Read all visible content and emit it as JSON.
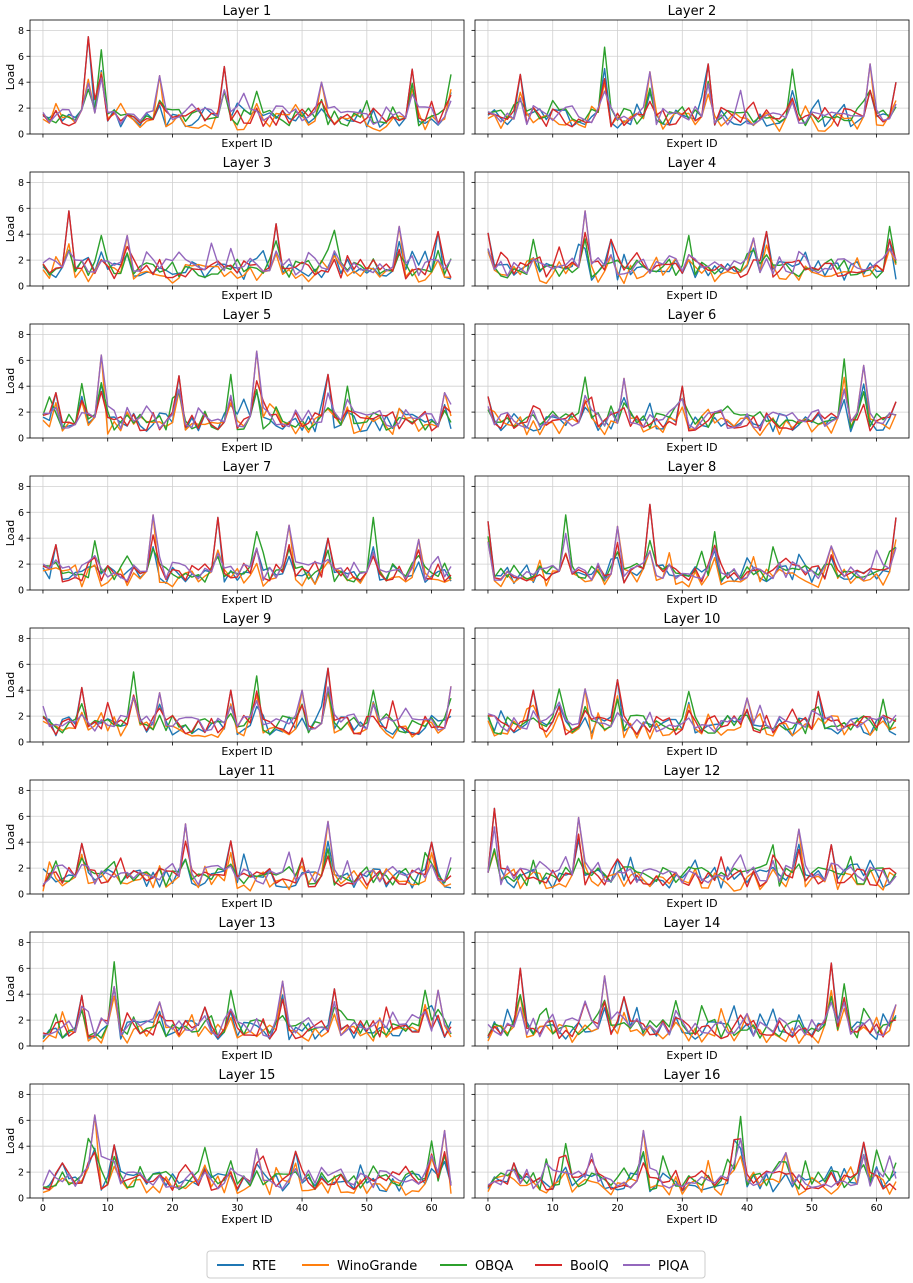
{
  "figure": {
    "legend": {
      "placement": "bottom-center",
      "entries": [
        {
          "name": "RTE",
          "color": "#1f77b4"
        },
        {
          "name": "WinoGrande",
          "color": "#ff7f0e"
        },
        {
          "name": "OBQA",
          "color": "#2ca02c"
        },
        {
          "name": "BoolQ",
          "color": "#d62728"
        },
        {
          "name": "PIQA",
          "color": "#9467bd"
        }
      ]
    }
  },
  "chart_data": [
    {
      "type": "line",
      "title": "Layer 1",
      "xlabel": "Expert ID",
      "ylabel": "Load",
      "xlim": [
        -2,
        65
      ],
      "ylim": [
        0,
        8.8
      ],
      "x_ticks": [
        0,
        10,
        20,
        30,
        40,
        50,
        60
      ],
      "y_ticks": [
        0,
        2,
        4,
        6,
        8
      ],
      "grid": true,
      "series_names": [
        "RTE",
        "WinoGrande",
        "OBQA",
        "BoolQ",
        "PIQA"
      ],
      "peaks": [
        [
          7,
          7.5
        ],
        [
          9,
          6.5
        ],
        [
          18,
          4.5
        ],
        [
          28,
          5.2
        ],
        [
          33,
          3.3
        ],
        [
          43,
          4.0
        ],
        [
          57,
          5.0
        ],
        [
          63,
          4.6
        ]
      ]
    },
    {
      "type": "line",
      "title": "Layer 2",
      "xlabel": "Expert ID",
      "ylabel": "",
      "xlim": [
        -2,
        65
      ],
      "ylim": [
        0,
        8.8
      ],
      "x_ticks": [
        0,
        10,
        20,
        30,
        40,
        50,
        60
      ],
      "y_ticks": [
        0,
        2,
        4,
        6,
        8
      ],
      "grid": true,
      "series_names": [
        "RTE",
        "WinoGrande",
        "OBQA",
        "BoolQ",
        "PIQA"
      ],
      "peaks": [
        [
          5,
          4.6
        ],
        [
          18,
          6.7
        ],
        [
          25,
          4.8
        ],
        [
          34,
          5.4
        ],
        [
          47,
          5.0
        ],
        [
          59,
          5.4
        ],
        [
          63,
          4.0
        ]
      ]
    },
    {
      "type": "line",
      "title": "Layer 3",
      "xlabel": "Expert ID",
      "ylabel": "Load",
      "xlim": [
        -2,
        65
      ],
      "ylim": [
        0,
        8.8
      ],
      "x_ticks": [
        0,
        10,
        20,
        30,
        40,
        50,
        60
      ],
      "y_ticks": [
        0,
        2,
        4,
        6,
        8
      ],
      "grid": true,
      "series_names": [
        "RTE",
        "WinoGrande",
        "OBQA",
        "BoolQ",
        "PIQA"
      ],
      "peaks": [
        [
          4,
          5.8
        ],
        [
          9,
          3.9
        ],
        [
          13,
          3.9
        ],
        [
          36,
          4.8
        ],
        [
          45,
          4.3
        ],
        [
          55,
          4.6
        ],
        [
          61,
          4.2
        ]
      ]
    },
    {
      "type": "line",
      "title": "Layer 4",
      "xlabel": "Expert ID",
      "ylabel": "",
      "xlim": [
        -2,
        65
      ],
      "ylim": [
        0,
        8.8
      ],
      "x_ticks": [
        0,
        10,
        20,
        30,
        40,
        50,
        60
      ],
      "y_ticks": [
        0,
        2,
        4,
        6,
        8
      ],
      "grid": true,
      "series_names": [
        "RTE",
        "WinoGrande",
        "OBQA",
        "BoolQ",
        "PIQA"
      ],
      "peaks": [
        [
          0,
          4.1
        ],
        [
          7,
          3.6
        ],
        [
          15,
          5.8
        ],
        [
          19,
          3.6
        ],
        [
          31,
          3.9
        ],
        [
          41,
          3.7
        ],
        [
          43,
          4.2
        ],
        [
          62,
          4.6
        ]
      ]
    },
    {
      "type": "line",
      "title": "Layer 5",
      "xlabel": "Expert ID",
      "ylabel": "Load",
      "xlim": [
        -2,
        65
      ],
      "ylim": [
        0,
        8.8
      ],
      "x_ticks": [
        0,
        10,
        20,
        30,
        40,
        50,
        60
      ],
      "y_ticks": [
        0,
        2,
        4,
        6,
        8
      ],
      "grid": true,
      "series_names": [
        "RTE",
        "WinoGrande",
        "OBQA",
        "BoolQ",
        "PIQA"
      ],
      "peaks": [
        [
          2,
          3.5
        ],
        [
          6,
          4.2
        ],
        [
          9,
          6.4
        ],
        [
          21,
          4.8
        ],
        [
          29,
          4.9
        ],
        [
          33,
          6.7
        ],
        [
          44,
          4.9
        ],
        [
          47,
          4.0
        ],
        [
          62,
          3.5
        ]
      ]
    },
    {
      "type": "line",
      "title": "Layer 6",
      "xlabel": "Expert ID",
      "ylabel": "",
      "xlim": [
        -2,
        65
      ],
      "ylim": [
        0,
        8.8
      ],
      "x_ticks": [
        0,
        10,
        20,
        30,
        40,
        50,
        60
      ],
      "y_ticks": [
        0,
        2,
        4,
        6,
        8
      ],
      "grid": true,
      "series_names": [
        "RTE",
        "WinoGrande",
        "OBQA",
        "BoolQ",
        "PIQA"
      ],
      "peaks": [
        [
          0,
          3.2
        ],
        [
          15,
          4.7
        ],
        [
          21,
          4.6
        ],
        [
          30,
          4.0
        ],
        [
          55,
          6.1
        ],
        [
          58,
          5.6
        ],
        [
          63,
          2.8
        ]
      ]
    },
    {
      "type": "line",
      "title": "Layer 7",
      "xlabel": "Expert ID",
      "ylabel": "Load",
      "xlim": [
        -2,
        65
      ],
      "ylim": [
        0,
        8.8
      ],
      "x_ticks": [
        0,
        10,
        20,
        30,
        40,
        50,
        60
      ],
      "y_ticks": [
        0,
        2,
        4,
        6,
        8
      ],
      "grid": true,
      "series_names": [
        "RTE",
        "WinoGrande",
        "OBQA",
        "BoolQ",
        "PIQA"
      ],
      "peaks": [
        [
          2,
          3.5
        ],
        [
          8,
          3.8
        ],
        [
          17,
          5.8
        ],
        [
          27,
          5.6
        ],
        [
          33,
          4.5
        ],
        [
          38,
          5.0
        ],
        [
          44,
          4.0
        ],
        [
          51,
          5.6
        ],
        [
          58,
          3.9
        ]
      ]
    },
    {
      "type": "line",
      "title": "Layer 8",
      "xlabel": "Expert ID",
      "ylabel": "",
      "xlim": [
        -2,
        65
      ],
      "ylim": [
        0,
        8.8
      ],
      "x_ticks": [
        0,
        10,
        20,
        30,
        40,
        50,
        60
      ],
      "y_ticks": [
        0,
        2,
        4,
        6,
        8
      ],
      "grid": true,
      "series_names": [
        "RTE",
        "WinoGrande",
        "OBQA",
        "BoolQ",
        "PIQA"
      ],
      "peaks": [
        [
          0,
          5.3
        ],
        [
          12,
          5.8
        ],
        [
          20,
          4.9
        ],
        [
          25,
          6.6
        ],
        [
          35,
          4.5
        ],
        [
          53,
          3.4
        ],
        [
          63,
          5.6
        ]
      ]
    },
    {
      "type": "line",
      "title": "Layer 9",
      "xlabel": "Expert ID",
      "ylabel": "Load",
      "xlim": [
        -2,
        65
      ],
      "ylim": [
        0,
        8.8
      ],
      "x_ticks": [
        0,
        10,
        20,
        30,
        40,
        50,
        60
      ],
      "y_ticks": [
        0,
        2,
        4,
        6,
        8
      ],
      "grid": true,
      "series_names": [
        "RTE",
        "WinoGrande",
        "OBQA",
        "BoolQ",
        "PIQA"
      ],
      "peaks": [
        [
          6,
          4.2
        ],
        [
          14,
          5.4
        ],
        [
          18,
          3.8
        ],
        [
          29,
          4.0
        ],
        [
          33,
          5.1
        ],
        [
          40,
          4.0
        ],
        [
          44,
          5.7
        ],
        [
          51,
          4.0
        ],
        [
          63,
          4.3
        ]
      ]
    },
    {
      "type": "line",
      "title": "Layer 10",
      "xlabel": "Expert ID",
      "ylabel": "",
      "xlim": [
        -2,
        65
      ],
      "ylim": [
        0,
        8.8
      ],
      "x_ticks": [
        0,
        10,
        20,
        30,
        40,
        50,
        60
      ],
      "y_ticks": [
        0,
        2,
        4,
        6,
        8
      ],
      "grid": true,
      "series_names": [
        "RTE",
        "WinoGrande",
        "OBQA",
        "BoolQ",
        "PIQA"
      ],
      "peaks": [
        [
          7,
          4.0
        ],
        [
          11,
          4.1
        ],
        [
          15,
          4.1
        ],
        [
          20,
          4.8
        ],
        [
          31,
          3.9
        ],
        [
          40,
          3.4
        ],
        [
          51,
          3.9
        ],
        [
          61,
          3.3
        ]
      ]
    },
    {
      "type": "line",
      "title": "Layer 11",
      "xlabel": "Expert ID",
      "ylabel": "Load",
      "xlim": [
        -2,
        65
      ],
      "ylim": [
        0,
        8.8
      ],
      "x_ticks": [
        0,
        10,
        20,
        30,
        40,
        50,
        60
      ],
      "y_ticks": [
        0,
        2,
        4,
        6,
        8
      ],
      "grid": true,
      "series_names": [
        "RTE",
        "WinoGrande",
        "OBQA",
        "BoolQ",
        "PIQA"
      ],
      "peaks": [
        [
          6,
          3.9
        ],
        [
          11,
          2.5
        ],
        [
          22,
          5.4
        ],
        [
          29,
          4.1
        ],
        [
          40,
          2.7
        ],
        [
          44,
          5.6
        ],
        [
          60,
          4.0
        ]
      ]
    },
    {
      "type": "line",
      "title": "Layer 12",
      "xlabel": "Expert ID",
      "ylabel": "",
      "xlim": [
        -2,
        65
      ],
      "ylim": [
        0,
        8.8
      ],
      "x_ticks": [
        0,
        10,
        20,
        30,
        40,
        50,
        60
      ],
      "y_ticks": [
        0,
        2,
        4,
        6,
        8
      ],
      "grid": true,
      "series_names": [
        "RTE",
        "WinoGrande",
        "OBQA",
        "BoolQ",
        "PIQA"
      ],
      "peaks": [
        [
          1,
          6.6
        ],
        [
          7,
          2.6
        ],
        [
          14,
          5.9
        ],
        [
          20,
          2.7
        ],
        [
          44,
          3.8
        ],
        [
          48,
          5.0
        ],
        [
          53,
          3.8
        ],
        [
          56,
          2.9
        ]
      ]
    },
    {
      "type": "line",
      "title": "Layer 13",
      "xlabel": "Expert ID",
      "ylabel": "Load",
      "xlim": [
        -2,
        65
      ],
      "ylim": [
        0,
        8.8
      ],
      "x_ticks": [
        0,
        10,
        20,
        30,
        40,
        50,
        60
      ],
      "y_ticks": [
        0,
        2,
        4,
        6,
        8
      ],
      "grid": true,
      "series_names": [
        "RTE",
        "WinoGrande",
        "OBQA",
        "BoolQ",
        "PIQA"
      ],
      "peaks": [
        [
          6,
          3.9
        ],
        [
          11,
          6.5
        ],
        [
          18,
          3.4
        ],
        [
          25,
          3.0
        ],
        [
          29,
          4.3
        ],
        [
          37,
          5.0
        ],
        [
          45,
          4.4
        ],
        [
          59,
          4.3
        ],
        [
          61,
          4.3
        ]
      ]
    },
    {
      "type": "line",
      "title": "Layer 14",
      "xlabel": "Expert ID",
      "ylabel": "",
      "xlim": [
        -2,
        65
      ],
      "ylim": [
        0,
        8.8
      ],
      "x_ticks": [
        0,
        10,
        20,
        30,
        40,
        50,
        60
      ],
      "y_ticks": [
        0,
        2,
        4,
        6,
        8
      ],
      "grid": true,
      "series_names": [
        "RTE",
        "WinoGrande",
        "OBQA",
        "BoolQ",
        "PIQA"
      ],
      "peaks": [
        [
          5,
          6.0
        ],
        [
          9,
          2.9
        ],
        [
          18,
          5.4
        ],
        [
          21,
          3.8
        ],
        [
          29,
          3.5
        ],
        [
          40,
          2.5
        ],
        [
          53,
          6.4
        ],
        [
          55,
          4.8
        ],
        [
          63,
          3.2
        ]
      ]
    },
    {
      "type": "line",
      "title": "Layer 15",
      "xlabel": "Expert ID",
      "ylabel": "Load",
      "xlim": [
        -2,
        65
      ],
      "ylim": [
        0,
        8.8
      ],
      "x_ticks": [
        0,
        10,
        20,
        30,
        40,
        50,
        60
      ],
      "y_ticks": [
        0,
        2,
        4,
        6,
        8
      ],
      "grid": true,
      "series_names": [
        "RTE",
        "WinoGrande",
        "OBQA",
        "BoolQ",
        "PIQA"
      ],
      "peaks": [
        [
          3,
          2.7
        ],
        [
          7,
          4.6
        ],
        [
          8,
          6.4
        ],
        [
          11,
          4.1
        ],
        [
          25,
          3.9
        ],
        [
          33,
          3.8
        ],
        [
          39,
          3.6
        ],
        [
          60,
          4.4
        ],
        [
          62,
          5.2
        ]
      ]
    },
    {
      "type": "line",
      "title": "Layer 16",
      "xlabel": "Expert ID",
      "ylabel": "",
      "xlim": [
        -2,
        65
      ],
      "ylim": [
        0,
        8.8
      ],
      "x_ticks": [
        0,
        10,
        20,
        30,
        40,
        50,
        60
      ],
      "y_ticks": [
        0,
        2,
        4,
        6,
        8
      ],
      "grid": true,
      "series_names": [
        "RTE",
        "WinoGrande",
        "OBQA",
        "BoolQ",
        "PIQA"
      ],
      "peaks": [
        [
          4,
          2.7
        ],
        [
          12,
          4.2
        ],
        [
          24,
          5.2
        ],
        [
          38,
          4.5
        ],
        [
          39,
          6.3
        ],
        [
          46,
          3.5
        ],
        [
          58,
          4.3
        ],
        [
          60,
          3.7
        ]
      ]
    }
  ]
}
